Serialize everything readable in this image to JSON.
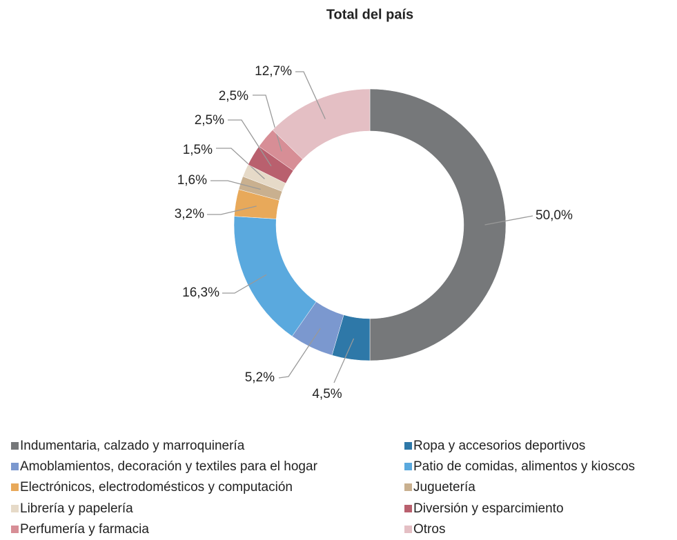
{
  "chart_data": {
    "type": "donut",
    "title": "Total del país",
    "categories": [
      "Indumentaria, calzado y marroquinería",
      "Ropa y accesorios deportivos",
      "Amoblamientos, decoración y textiles para el hogar",
      "Patio de comidas, alimentos y kioscos",
      "Electrónicos, electrodomésticos y computación",
      "Juguetería",
      "Librería y papelería",
      "Diversión y esparcimiento",
      "Perfumería y farmacia",
      "Otros"
    ],
    "values": [
      50.0,
      4.5,
      5.2,
      16.3,
      3.2,
      1.6,
      1.5,
      2.5,
      2.5,
      12.7
    ],
    "value_labels": [
      "50,0%",
      "4,5%",
      "5,2%",
      "16,3%",
      "3,2%",
      "1,6%",
      "1,5%",
      "2,5%",
      "2,5%",
      "12,7%"
    ],
    "colors": [
      "#76787a",
      "#2e78a8",
      "#7b98cf",
      "#5aa9de",
      "#e8a95a",
      "#c9b08f",
      "#e6dac8",
      "#b9606e",
      "#d78e96",
      "#e4bfc4"
    ],
    "legend": "bottom"
  }
}
